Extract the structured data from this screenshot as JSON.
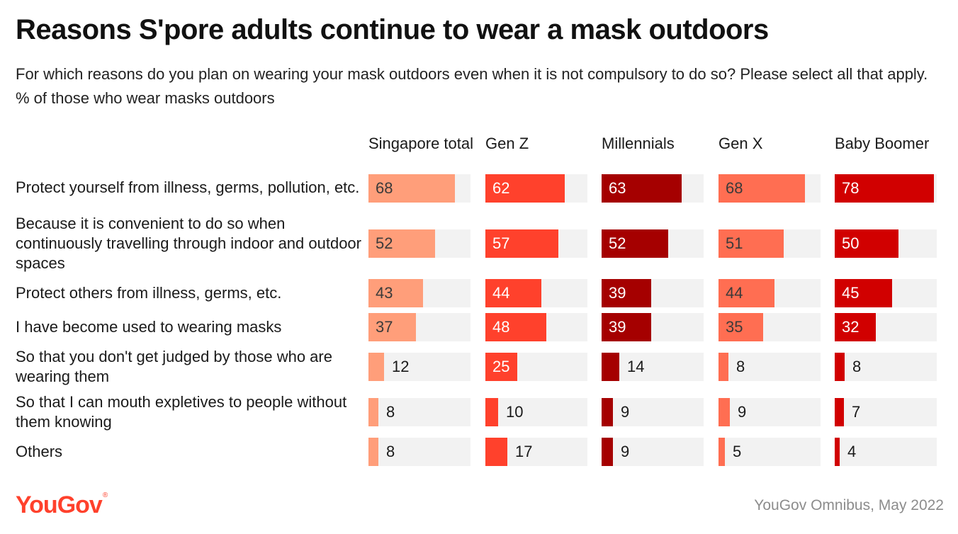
{
  "title": "Reasons S'pore adults continue to wear a mask outdoors",
  "subtitle": "For which reasons do you plan on wearing your mask outdoors even when it is not compulsory to do so? Please select all that apply. % of those who wear masks outdoors",
  "source": "YouGov Omnibus, May 2022",
  "logo": "YouGov",
  "chart_data": {
    "type": "bar",
    "orientation": "horizontal",
    "layout": "small-multiples",
    "ylim": [
      0,
      80
    ],
    "categories": [
      "Protect yourself from illness, germs, pollution, etc.",
      "Because it is convenient to do so when continuously travelling through indoor and outdoor spaces",
      "Protect others from illness, germs, etc.",
      "I have become used to wearing masks",
      "So that you don't get judged by those who are wearing them",
      "So that I can mouth expletives to people without them knowing",
      "Others"
    ],
    "series": [
      {
        "name": "Singapore total",
        "color": "#ff9e7a",
        "values": [
          68,
          52,
          43,
          37,
          12,
          8,
          8
        ]
      },
      {
        "name": "Gen Z",
        "color": "#ff412c",
        "values": [
          62,
          57,
          44,
          48,
          25,
          10,
          17
        ]
      },
      {
        "name": "Millennials",
        "color": "#a50000",
        "values": [
          63,
          52,
          39,
          39,
          14,
          9,
          9
        ]
      },
      {
        "name": "Gen X",
        "color": "#ff6e52",
        "values": [
          68,
          51,
          44,
          35,
          8,
          9,
          5
        ]
      },
      {
        "name": "Baby Boomer",
        "color": "#d10000",
        "values": [
          78,
          50,
          45,
          32,
          8,
          7,
          4
        ]
      }
    ]
  }
}
